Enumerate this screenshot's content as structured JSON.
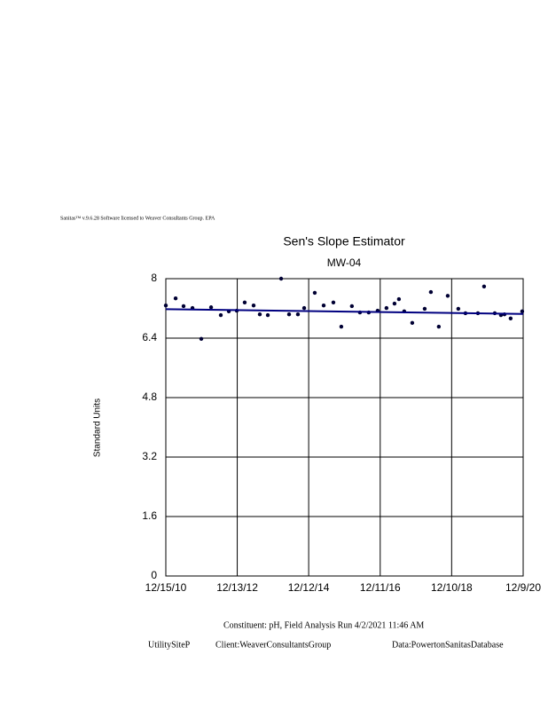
{
  "header": {
    "license": "Sanitas™ v.9.6.28 Software licensed to Weaver Consultants Group. EPA"
  },
  "chart_data": {
    "type": "scatter",
    "title": "Sen's Slope Estimator",
    "subtitle": "MW-04",
    "y_label": "Standard Units",
    "x": [
      "2010-12-15",
      "2011-03-25",
      "2011-06-14",
      "2011-09-13",
      "2011-12-12",
      "2012-03-21",
      "2012-06-28",
      "2012-09-18",
      "2012-12-08",
      "2013-02-27",
      "2013-05-29",
      "2013-07-31",
      "2013-10-21",
      "2014-03-06",
      "2014-05-26",
      "2014-08-24",
      "2014-10-27",
      "2015-02-12",
      "2015-05-14",
      "2015-08-21",
      "2015-11-10",
      "2016-02-26",
      "2016-05-18",
      "2016-08-16",
      "2016-11-15",
      "2017-02-13",
      "2017-05-06",
      "2017-06-20",
      "2017-08-13",
      "2017-11-03",
      "2018-03-10",
      "2018-05-12",
      "2018-08-01",
      "2018-10-31",
      "2019-02-16",
      "2019-04-30",
      "2019-09-04",
      "2019-11-06",
      "2020-02-23",
      "2020-04-26",
      "2020-06-01",
      "2020-08-03",
      "2020-11-29"
    ],
    "values": [
      7.28,
      7.47,
      7.26,
      7.21,
      6.38,
      7.23,
      7.02,
      7.12,
      7.14,
      7.36,
      7.28,
      7.04,
      7.02,
      8.0,
      7.04,
      7.04,
      7.21,
      7.62,
      7.28,
      7.36,
      6.71,
      7.26,
      7.09,
      7.09,
      7.14,
      7.21,
      7.33,
      7.45,
      7.12,
      6.81,
      7.19,
      7.64,
      6.71,
      7.54,
      7.19,
      7.07,
      7.07,
      7.79,
      7.07,
      7.02,
      7.04,
      6.93,
      7.12
    ],
    "color": "#000033",
    "trend": {
      "x": [
        "2010-12-15",
        "2020-12-09"
      ],
      "values": [
        7.18,
        7.05
      ],
      "color": "#000080"
    },
    "xlim": [
      "2010-12-15",
      "2020-12-09"
    ],
    "xticks": [
      {
        "value": "2010-12-15",
        "label": "12/15/10"
      },
      {
        "value": "2012-12-13",
        "label": "12/13/12"
      },
      {
        "value": "2014-12-12",
        "label": "12/12/14"
      },
      {
        "value": "2016-12-11",
        "label": "12/11/16"
      },
      {
        "value": "2018-12-10",
        "label": "12/10/18"
      },
      {
        "value": "2020-12-09",
        "label": "12/9/20"
      }
    ],
    "ylim": [
      0,
      8
    ],
    "yticks": [
      0,
      1.6,
      3.2,
      4.8,
      6.4,
      8
    ],
    "grid": true
  },
  "footer": {
    "constituent": "Constituent: pH, Field Analysis Run 4/2/2021 11:46 AM",
    "site": "UtilitySiteP",
    "client": "Client:WeaverConsultantsGroup",
    "data": "Data:PowertonSanitasDatabase"
  }
}
